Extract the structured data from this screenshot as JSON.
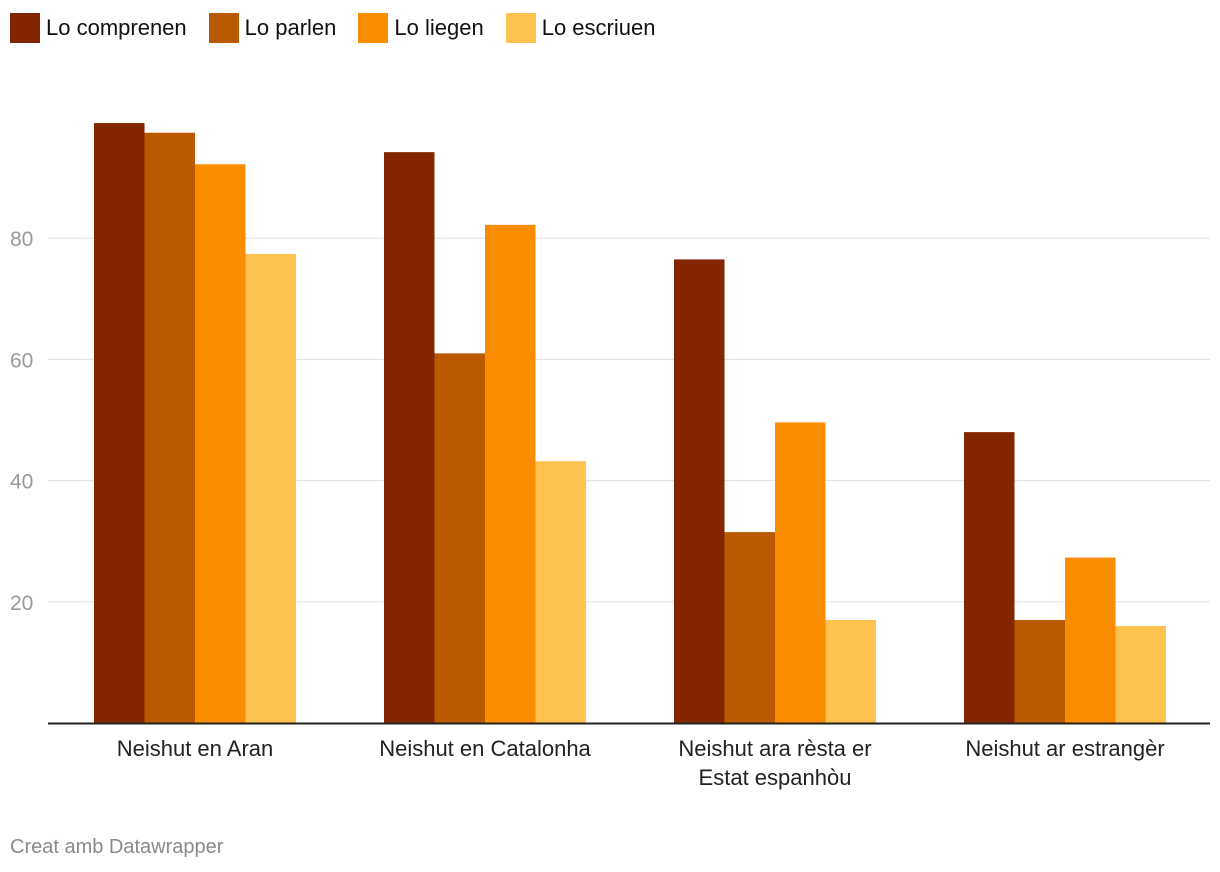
{
  "chart_data": {
    "type": "bar",
    "categories": [
      [
        "Neishut en Aran"
      ],
      [
        "Neishut en Catalonha"
      ],
      [
        "Neishut ara rèsta er",
        "Estat espanhòu"
      ],
      [
        "Neishut ar estrangèr"
      ]
    ],
    "series": [
      {
        "name": "Lo comprenen",
        "color": "#822500",
        "values": [
          99,
          94.2,
          76.5,
          48
        ]
      },
      {
        "name": "Lo parlen",
        "color": "#ba5900",
        "values": [
          97.4,
          61,
          31.5,
          17
        ]
      },
      {
        "name": "Lo liegen",
        "color": "#fa8c00",
        "values": [
          92.2,
          82.2,
          49.6,
          27.3
        ]
      },
      {
        "name": "Lo escriuen",
        "color": "#ffc14f",
        "values": [
          77.4,
          43.2,
          17,
          16
        ]
      }
    ],
    "yticks": [
      20,
      40,
      60,
      80
    ],
    "ylim": [
      0,
      100
    ],
    "grid": true,
    "legend_position": "top-left"
  },
  "footer": "Creat amb Datawrapper"
}
